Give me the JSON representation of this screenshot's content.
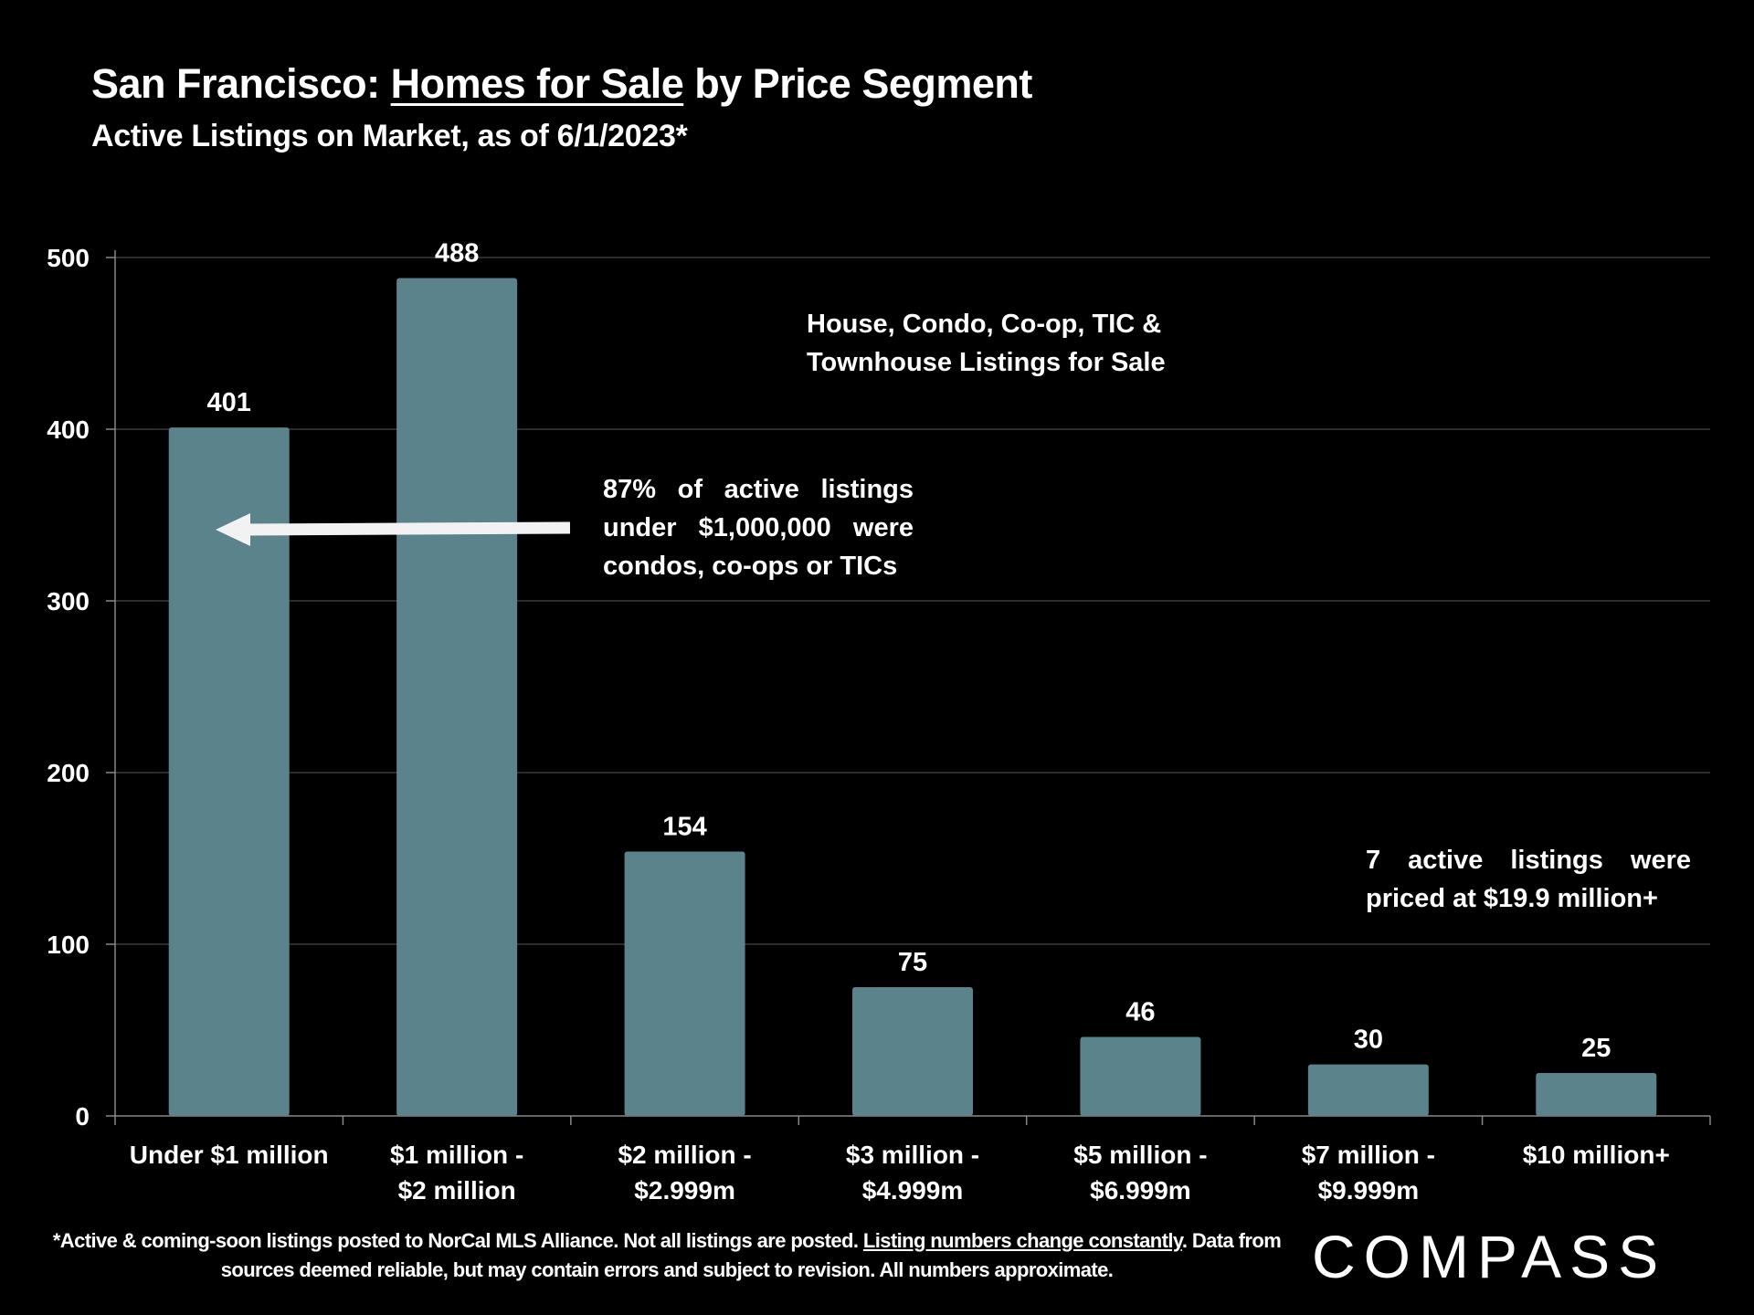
{
  "title": {
    "prefix": "San Francisco: ",
    "underlined": "Homes for Sale",
    "suffix": " by Price Segment"
  },
  "subtitle": "Active Listings on Market, as of 6/1/2023*",
  "annotations": {
    "types": [
      "House, Condo, Co-op, TIC &",
      "Townhouse Listings for Sale"
    ],
    "condo_note": [
      "87% of active listings",
      "under $1,000,000 were",
      "condos, co-ops or TICs"
    ],
    "high_end_note": [
      "7 active listings were",
      "priced at $19.9 million+"
    ]
  },
  "footer": {
    "part1": "*Active & coming-soon listings posted to NorCal MLS Alliance. Not all listings are posted. ",
    "underlined": "Listing numbers change constantly",
    "part2": ". Data from sources deemed reliable, but may contain errors and subject to revision. All numbers approximate."
  },
  "logo": "COMPASS",
  "chart_data": {
    "type": "bar",
    "categories": [
      [
        "Under $1 million"
      ],
      [
        "$1 million -",
        "$2 million"
      ],
      [
        "$2 million -",
        "$2.999m"
      ],
      [
        "$3 million -",
        "$4.999m"
      ],
      [
        "$5 million -",
        "$6.999m"
      ],
      [
        "$7 million -",
        "$9.999m"
      ],
      [
        "$10 million+"
      ]
    ],
    "values": [
      401,
      488,
      154,
      75,
      46,
      30,
      25
    ],
    "ylim": [
      0,
      500
    ],
    "yticks": [
      0,
      100,
      200,
      300,
      400,
      500
    ],
    "grid": true,
    "data_labels": true,
    "bar_color": "#5b838c",
    "grid_color": "#3a3a3a"
  }
}
